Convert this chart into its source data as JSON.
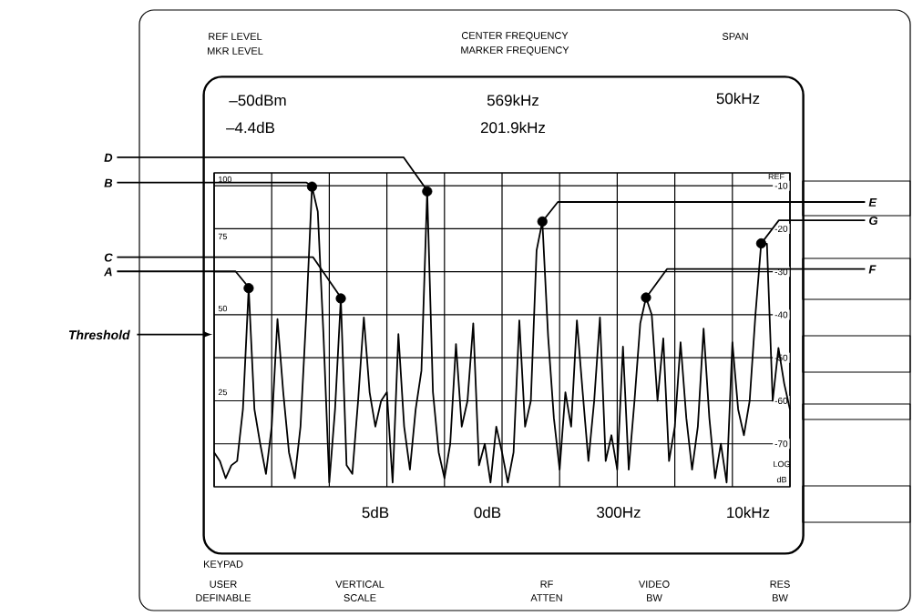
{
  "chart_data": {
    "type": "line",
    "ylim": [
      -80,
      -7
    ],
    "yticks": [
      -10,
      -20,
      -30,
      -40,
      -50,
      -60,
      -70
    ],
    "grid": true,
    "line_style": "solid",
    "categories": [
      null,
      null,
      null,
      null,
      null,
      null,
      null,
      null,
      null,
      null,
      null,
      null,
      null,
      null,
      null,
      null,
      null,
      null,
      null,
      null,
      null,
      null,
      null,
      null,
      null,
      null,
      null,
      null,
      null,
      null,
      null,
      null,
      null,
      null,
      null,
      null,
      null,
      null,
      null,
      null,
      null,
      null,
      null,
      null,
      null,
      null,
      null,
      null,
      null,
      null,
      null,
      null,
      null,
      null,
      null,
      null,
      null,
      null,
      null,
      null,
      null,
      null,
      null,
      null,
      null,
      null,
      null,
      null,
      null,
      null,
      null,
      null,
      null,
      null,
      null,
      null,
      null,
      null,
      null,
      null,
      null,
      null,
      null,
      null,
      null,
      null,
      null,
      null,
      null,
      null,
      null,
      null,
      null,
      null,
      null,
      null,
      null,
      null,
      null,
      null,
      null
    ],
    "series": [
      {
        "color": "#000000",
        "values": [
          -72,
          -74,
          -78,
          -75,
          -74,
          -62,
          -33.8,
          -62,
          -70,
          -77,
          -66,
          -41,
          -58,
          -72,
          -78,
          -66,
          -40,
          -10.2,
          -16,
          -45,
          -79,
          -62,
          -36.2,
          -75,
          -77,
          -60,
          -40.6,
          -58,
          -66,
          -60,
          -58,
          -79,
          -44.5,
          -66,
          -76,
          -62,
          -53,
          -11.3,
          -58,
          -72,
          -78,
          -70,
          -46.8,
          -66,
          -60,
          -42,
          -75,
          -70,
          -79,
          -66,
          -72,
          -79,
          -72,
          -41.3,
          -66,
          -60,
          -25,
          -18.3,
          -45,
          -64,
          -76,
          -58,
          -66,
          -41.3,
          -58,
          -74,
          -60,
          -40.6,
          -74,
          -68,
          -76,
          -47.4,
          -76,
          -60,
          -42,
          -36,
          -40,
          -60,
          -45.5,
          -74,
          -66,
          -46.4,
          -64,
          -76,
          -66,
          -43.2,
          -64,
          -78,
          -70,
          -79,
          -46.4,
          -62,
          -68,
          -60,
          -40,
          -23.4,
          -23.5,
          -60,
          -47.7,
          -56,
          -62
        ]
      },
      {
        "type": "scatter",
        "color": "#000000",
        "values": [
          null,
          null,
          null,
          null,
          null,
          null,
          -33.8,
          null,
          null,
          null,
          null,
          null,
          null,
          null,
          null,
          null,
          null,
          -10.2,
          null,
          null,
          null,
          null,
          -36.2,
          null,
          null,
          null,
          null,
          null,
          null,
          null,
          null,
          null,
          null,
          null,
          null,
          null,
          null,
          -11.3,
          null,
          null,
          null,
          null,
          null,
          null,
          null,
          null,
          null,
          null,
          null,
          null,
          null,
          null,
          null,
          null,
          null,
          null,
          null,
          -18.3,
          null,
          null,
          null,
          null,
          null,
          null,
          null,
          null,
          null,
          null,
          null,
          null,
          null,
          null,
          null,
          null,
          null,
          -36,
          null,
          null,
          null,
          null,
          null,
          null,
          null,
          null,
          null,
          null,
          null,
          null,
          null,
          null,
          null,
          null,
          null,
          null,
          null,
          -23.4,
          null,
          null,
          null,
          null,
          null
        ]
      }
    ],
    "annotations": [
      "REF LEVEL",
      "MKR LEVEL",
      "CENTER FREQUENCY",
      "MARKER FREQUENCY",
      "SPAN",
      "–50dBm",
      "–4.4dB",
      "569kHz",
      "201.9kHz",
      "50kHz",
      "5dB",
      "0dB",
      "300Hz",
      "10kHz",
      "KEYPAD",
      "USER",
      "DEFINABLE",
      "VERTICAL",
      "SCALE",
      "RF",
      "ATTEN",
      "VIDEO",
      "BW",
      "RES",
      "BW",
      "REF",
      "LOG",
      "dB",
      "100",
      "75",
      "50",
      "25",
      "A",
      "B",
      "C",
      "D",
      "E",
      "F",
      "G",
      "Threshold"
    ]
  }
}
